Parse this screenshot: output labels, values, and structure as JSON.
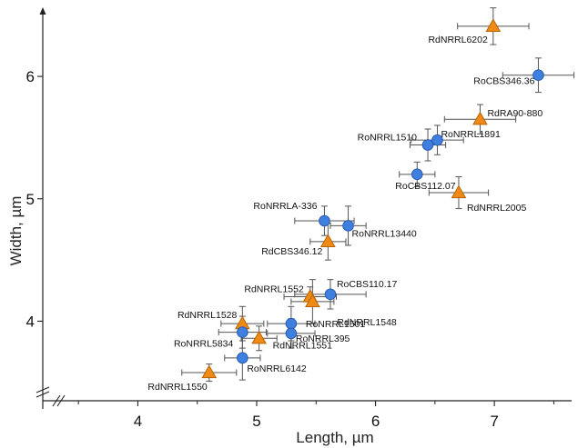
{
  "chart_data": {
    "type": "scatter",
    "title": "",
    "xlabel": "Length, µm",
    "ylabel": "Width, µm",
    "xlim": [
      3.2,
      7.65
    ],
    "ylim": [
      3.35,
      6.55
    ],
    "x_ticks": [
      4,
      5,
      6,
      7
    ],
    "y_ticks": [
      4,
      5,
      6
    ],
    "axis_breaks": true,
    "grid": false,
    "legend": "none",
    "marker_styles": {
      "circle": {
        "fill": "#3f7fe0",
        "stroke": "#2a5cb0"
      },
      "triangle": {
        "fill": "#f08a16",
        "stroke": "#b86400"
      }
    },
    "points": [
      {
        "label": "RdNRRL6202",
        "marker": "triangle",
        "x": 6.99,
        "y": 6.41,
        "xerr": 0.3,
        "yerr": 0.15
      },
      {
        "label": "RoCBS346.36",
        "marker": "circle",
        "x": 7.37,
        "y": 6.01,
        "xerr": 0.3,
        "yerr": 0.14
      },
      {
        "label": "RdRA90-880",
        "marker": "triangle",
        "x": 6.88,
        "y": 5.65,
        "xerr": 0.3,
        "yerr": 0.12
      },
      {
        "label": "RoNRRL1510",
        "marker": "circle",
        "x": 6.44,
        "y": 5.44,
        "xerr": 0.15,
        "yerr": 0.13
      },
      {
        "label": "RoNRRL1891",
        "marker": "circle",
        "x": 6.52,
        "y": 5.48,
        "xerr": 0.22,
        "yerr": 0.12
      },
      {
        "label": "RoCBS112.07",
        "marker": "circle",
        "x": 6.35,
        "y": 5.2,
        "xerr": 0.15,
        "yerr": 0.1
      },
      {
        "label": "RdNRRL2005",
        "marker": "triangle",
        "x": 6.7,
        "y": 5.05,
        "xerr": 0.25,
        "yerr": 0.13
      },
      {
        "label": "RoNRRLA-336",
        "marker": "circle",
        "x": 5.57,
        "y": 4.82,
        "xerr": 0.25,
        "yerr": 0.12
      },
      {
        "label": "RoNRRL13440",
        "marker": "circle",
        "x": 5.77,
        "y": 4.78,
        "xerr": 0.15,
        "yerr": 0.16
      },
      {
        "label": "RdCBS346.12",
        "marker": "triangle",
        "x": 5.6,
        "y": 4.65,
        "xerr": 0.15,
        "yerr": 0.15
      },
      {
        "label": "RoCBS110.17",
        "marker": "circle",
        "x": 5.62,
        "y": 4.22,
        "xerr": 0.3,
        "yerr": 0.12
      },
      {
        "label": "RdNRRL1552",
        "marker": "triangle",
        "x": 5.45,
        "y": 4.2,
        "xerr": 0.22,
        "yerr": 0.08
      },
      {
        "label": "RdNRRL1548",
        "marker": "triangle",
        "x": 5.47,
        "y": 4.16,
        "xerr": 0.18,
        "yerr": 0.18
      },
      {
        "label": "RdNRRL1528",
        "marker": "triangle",
        "x": 4.88,
        "y": 3.98,
        "xerr": 0.18,
        "yerr": 0.14
      },
      {
        "label": "RoNRRL1501",
        "marker": "circle",
        "x": 5.29,
        "y": 3.98,
        "xerr": 0.2,
        "yerr": 0.14
      },
      {
        "label": "RoNRRL5834",
        "marker": "circle",
        "x": 4.88,
        "y": 3.91,
        "xerr": 0.2,
        "yerr": 0.13
      },
      {
        "label": "RdNRRL1551",
        "marker": "triangle",
        "x": 5.02,
        "y": 3.86,
        "xerr": 0.15,
        "yerr": 0.1
      },
      {
        "label": "RoNRRL395",
        "marker": "circle",
        "x": 5.29,
        "y": 3.9,
        "xerr": 0.2,
        "yerr": 0.12
      },
      {
        "label": "RoNRRL6142",
        "marker": "circle",
        "x": 4.88,
        "y": 3.7,
        "xerr": 0.15,
        "yerr": 0.18
      },
      {
        "label": "RdNRRL1550",
        "marker": "triangle",
        "x": 4.6,
        "y": 3.58,
        "xerr": 0.23,
        "yerr": 0.07
      }
    ]
  }
}
